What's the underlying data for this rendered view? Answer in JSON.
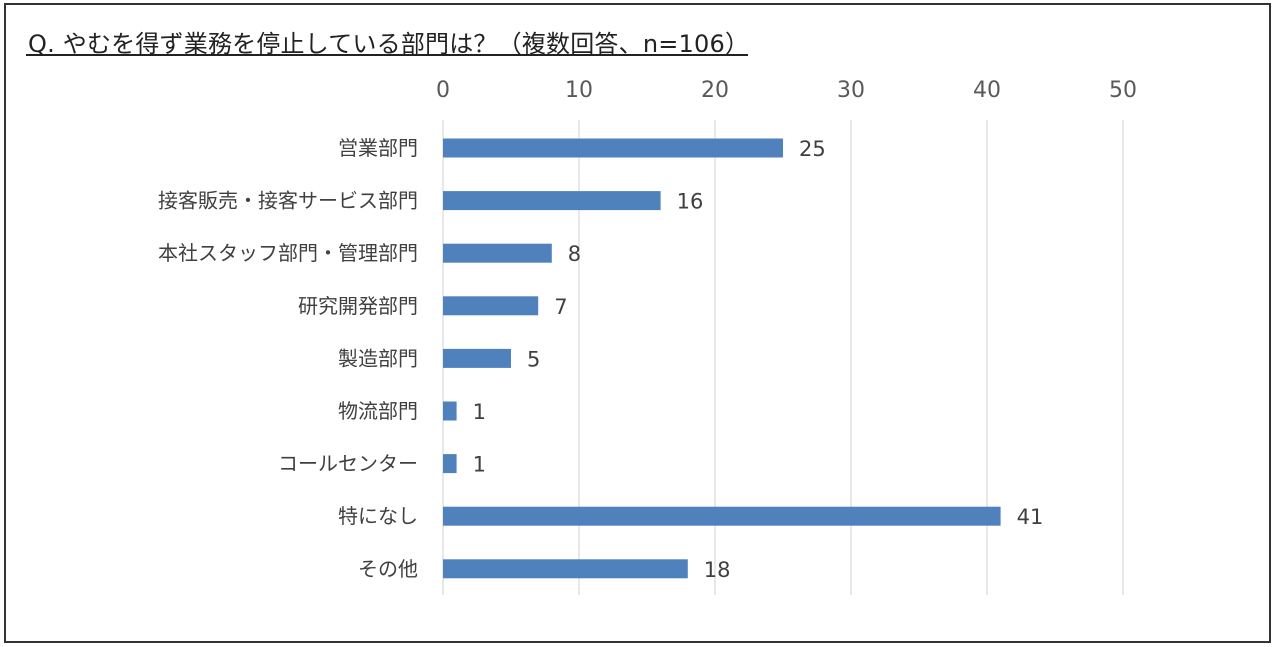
{
  "title": "Q.  やむを得ず業務を停止している部門は？（複数回答、n=106）",
  "chart_data": {
    "type": "bar",
    "orientation": "horizontal",
    "title": "Q.  やむを得ず業務を停止している部門は？（複数回答、n=106）",
    "xlabel": "",
    "ylabel": "",
    "xlim": [
      0,
      50
    ],
    "xticks": [
      "0",
      "10",
      "20",
      "30",
      "40",
      "50"
    ],
    "x_axis_position": "top",
    "grid": true,
    "legend": "none",
    "bar_color": "#4F81BD",
    "grid_color": "#D9D9D9",
    "categories": [
      "営業部門",
      "接客販売・接客サービス部門",
      "本社スタッフ部門・管理部門",
      "研究開発部門",
      "製造部門",
      "物流部門",
      "コールセンター",
      "特になし",
      "その他"
    ],
    "values": [
      25,
      16,
      8,
      7,
      5,
      1,
      1,
      41,
      18
    ],
    "data_labels": [
      "25",
      "16",
      "8",
      "7",
      "5",
      "1",
      "1",
      "41",
      "18"
    ]
  }
}
